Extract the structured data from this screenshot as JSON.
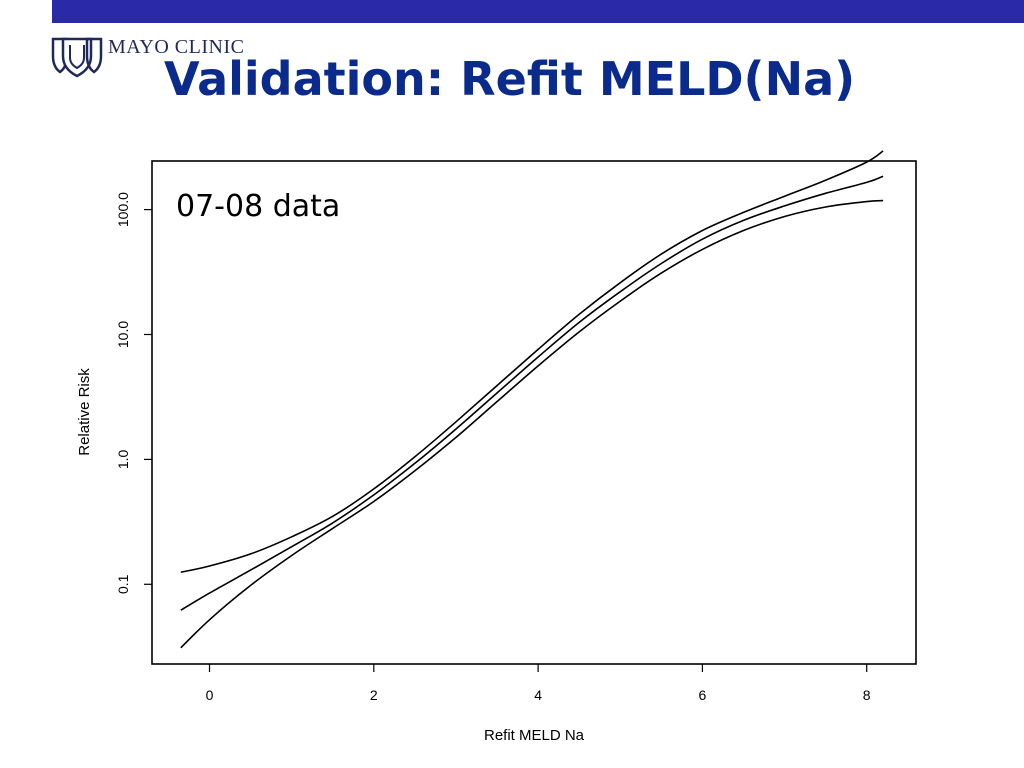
{
  "header": {
    "logo_text": "MAYO CLINIC",
    "title": "Validation: Refit MELD(Na)"
  },
  "colors": {
    "top_bar": "#2a2aa8",
    "title": "#0a2a8c",
    "lines": "#000000"
  },
  "chart_data": {
    "type": "line",
    "annotation": "07-08 data",
    "xlabel": "Refit MELD Na",
    "ylabel": "Relative Risk",
    "x_ticks": [
      0,
      2,
      4,
      6,
      8
    ],
    "y_ticks": [
      0.1,
      1.0,
      10.0,
      100.0
    ],
    "y_tick_labels": [
      "0.1",
      "1.0",
      "10.0",
      "100.0"
    ],
    "y_scale": "log",
    "xlim": [
      -0.7,
      8.6
    ],
    "ylim": [
      0.023,
      245
    ],
    "series": [
      {
        "x": [
          -0.35,
          0,
          0.5,
          1,
          1.5,
          2,
          2.5,
          3,
          3.5,
          4,
          4.5,
          5,
          5.5,
          6,
          6.5,
          7,
          7.5,
          8,
          8.2
        ],
        "y": [
          0.125,
          0.14,
          0.175,
          0.24,
          0.35,
          0.58,
          1.05,
          2.0,
          3.9,
          7.6,
          14.5,
          26,
          44,
          68,
          95,
          128,
          172,
          240,
          295
        ]
      },
      {
        "x": [
          -0.35,
          0,
          0.5,
          1,
          1.5,
          2,
          2.5,
          3,
          3.5,
          4,
          4.5,
          5,
          5.5,
          6,
          6.5,
          7,
          7.5,
          8,
          8.2
        ],
        "y": [
          0.062,
          0.085,
          0.13,
          0.2,
          0.31,
          0.52,
          0.93,
          1.75,
          3.4,
          6.6,
          12.5,
          22,
          37,
          58,
          82,
          107,
          135,
          165,
          185
        ]
      },
      {
        "x": [
          -0.35,
          0,
          0.5,
          1,
          1.5,
          2,
          2.5,
          3,
          3.5,
          4,
          4.5,
          5,
          5.5,
          6,
          6.5,
          7,
          7.5,
          8,
          8.2
        ],
        "y": [
          0.031,
          0.052,
          0.098,
          0.17,
          0.28,
          0.46,
          0.81,
          1.5,
          2.9,
          5.6,
          10.5,
          18.5,
          31,
          48,
          68,
          88,
          105,
          116,
          118
        ]
      }
    ]
  }
}
